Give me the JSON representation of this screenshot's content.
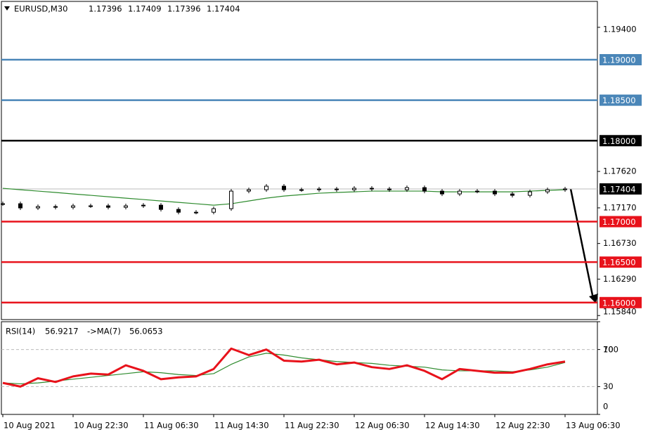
{
  "chart_data": [
    {
      "type": "candlestick",
      "title": "EURUSD,M30",
      "ohlc": [
        1.17396,
        1.17409,
        1.17396,
        1.17404
      ],
      "x": [
        0,
        4,
        8,
        12,
        16,
        20,
        24,
        28,
        32,
        36,
        40,
        44,
        48,
        52,
        56,
        60,
        64,
        68,
        72,
        76,
        80,
        84,
        88,
        92,
        96,
        100,
        104,
        108,
        112,
        116,
        120,
        124,
        128
      ],
      "xlim": [
        -0.32,
        135.36
      ],
      "xticks": [
        {
          "value": 0,
          "label": "10 Aug 2021"
        },
        {
          "value": 16,
          "label": "10 Aug 22:30"
        },
        {
          "value": 32,
          "label": "11 Aug 06:30"
        },
        {
          "value": 48,
          "label": "11 Aug 14:30"
        },
        {
          "value": 64,
          "label": "11 Aug 22:30"
        },
        {
          "value": 80,
          "label": "12 Aug 06:30"
        },
        {
          "value": 96,
          "label": "12 Aug 14:30"
        },
        {
          "value": 112,
          "label": "12 Aug 22:30"
        },
        {
          "value": 128,
          "label": "13 Aug 06:30"
        }
      ],
      "series": [
        {
          "name": "EURUSD",
          "color": "#000000",
          "values": [
            1.17221,
            1.17169,
            1.17186,
            1.17177,
            1.17195,
            1.17195,
            1.17177,
            1.17195,
            1.17203,
            1.17151,
            1.17116,
            1.17116,
            1.1716,
            1.17377,
            1.17394,
            1.17438,
            1.17394,
            1.17394,
            1.17403,
            1.17394,
            1.17412,
            1.17403,
            1.17394,
            1.1742,
            1.17377,
            1.17342,
            1.17377,
            1.17377,
            1.17342,
            1.17325,
            1.17368,
            1.17394,
            1.17404
          ]
        },
        {
          "name": "MA",
          "color": "#2e8b2e",
          "values": [
            1.17412,
            1.17394,
            1.17377,
            1.1736,
            1.17342,
            1.17325,
            1.17307,
            1.1729,
            1.17273,
            1.17255,
            1.17238,
            1.17221,
            1.17203,
            1.17221,
            1.17255,
            1.1729,
            1.17316,
            1.17333,
            1.17351,
            1.1736,
            1.17368,
            1.17377,
            1.17377,
            1.17377,
            1.17377,
            1.17368,
            1.17368,
            1.17368,
            1.17368,
            1.17368,
            1.17377,
            1.17386,
            1.17394
          ]
        }
      ],
      "ylim": [
        1.1579,
        1.1972
      ],
      "yticks": [
        {
          "value": 1.194,
          "label": "1.19400"
        },
        {
          "value": 1.1762,
          "label": "1.17620"
        },
        {
          "value": 1.1717,
          "label": "1.17170"
        },
        {
          "value": 1.1673,
          "label": "1.16730"
        },
        {
          "value": 1.1629,
          "label": "1.16290"
        },
        {
          "value": 1.1584,
          "label": "1.15840"
        }
      ],
      "levels": [
        {
          "value": 1.19,
          "label": "1.19000",
          "color": "#4a86b8"
        },
        {
          "value": 1.185,
          "label": "1.18500",
          "color": "#4a86b8"
        },
        {
          "value": 1.18,
          "label": "1.18000",
          "color": "#000000"
        },
        {
          "value": 1.17,
          "label": "1.17000",
          "color": "#e8121b"
        },
        {
          "value": 1.165,
          "label": "1.16500",
          "color": "#e8121b"
        },
        {
          "value": 1.16,
          "label": "1.16000",
          "color": "#e8121b"
        }
      ],
      "current_price": 1.17404
    },
    {
      "type": "line",
      "title": "RSI(14)",
      "rsi_value": 56.9217,
      "ma_title": "->MA(7)",
      "ma_value": 56.0653,
      "x": [
        0,
        4,
        8,
        12,
        16,
        20,
        24,
        28,
        32,
        36,
        40,
        44,
        48,
        52,
        56,
        60,
        64,
        68,
        72,
        76,
        80,
        84,
        88,
        92,
        96,
        100,
        104,
        108,
        112,
        116,
        120,
        124,
        128
      ],
      "xlim": [
        -0.32,
        135.36
      ],
      "series": [
        {
          "name": "RSI",
          "color": "#e8121b",
          "values": [
            34,
            30,
            39,
            35,
            41,
            44,
            43,
            53,
            47,
            38,
            40,
            41,
            49,
            71,
            64,
            70,
            58,
            57,
            59,
            54,
            56,
            51,
            49,
            53,
            47,
            38,
            49,
            47,
            45,
            45,
            49,
            54,
            57
          ]
        },
        {
          "name": "MA(7)",
          "color": "#2e8b2e",
          "values": [
            34,
            33,
            34,
            36,
            38,
            40,
            42,
            44,
            46,
            45,
            43,
            42,
            44,
            54,
            62,
            66,
            64,
            61,
            59,
            57,
            56,
            55,
            53,
            52,
            51,
            48,
            47,
            47,
            47,
            46,
            48,
            51,
            56
          ]
        }
      ],
      "ylim": [
        0,
        100
      ],
      "yticks": [
        0,
        30,
        70,
        100
      ],
      "levels": [
        30,
        70
      ]
    }
  ]
}
